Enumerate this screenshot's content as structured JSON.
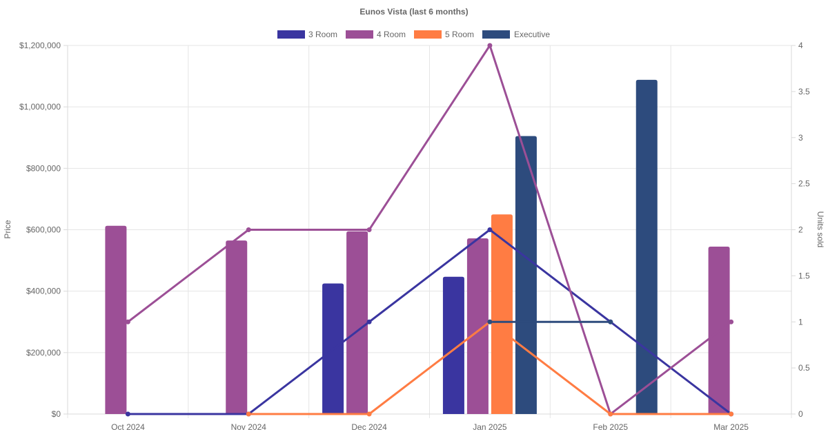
{
  "chart_data": {
    "type": "bar",
    "title": "Eunos Vista (last 6 months)",
    "categories": [
      "Oct 2024",
      "Nov 2024",
      "Dec 2024",
      "Jan 2025",
      "Feb 2025",
      "Mar 2025"
    ],
    "ylabel": "Price",
    "y2label": "Units sold",
    "ylim": [
      0,
      1200000
    ],
    "y2lim": [
      0,
      4
    ],
    "y_ticks": [
      "$0",
      "$200,000",
      "$400,000",
      "$600,000",
      "$800,000",
      "$1,000,000",
      "$1,200,000"
    ],
    "y_tick_values": [
      0,
      200000,
      400000,
      600000,
      800000,
      1000000,
      1200000
    ],
    "y2_ticks": [
      "0",
      "0.5",
      "1",
      "1.5",
      "2",
      "2.5",
      "3",
      "3.5",
      "4"
    ],
    "y2_tick_values": [
      0,
      0.5,
      1,
      1.5,
      2,
      2.5,
      3,
      3.5,
      4
    ],
    "grid": true,
    "legend_position": "top-center",
    "series": [
      {
        "name": "3 Room",
        "color": "#3a35a0",
        "price": [
          null,
          null,
          425000,
          447000,
          null,
          null
        ],
        "units": [
          0,
          0,
          1,
          2,
          1,
          0
        ]
      },
      {
        "name": "4 Room",
        "color": "#9c4f96",
        "price": [
          613000,
          565000,
          595000,
          572000,
          null,
          545000
        ],
        "units": [
          1,
          2,
          2,
          4,
          0,
          1
        ]
      },
      {
        "name": "5 Room",
        "color": "#ff7c43",
        "price": [
          null,
          null,
          null,
          650000,
          null,
          null
        ],
        "units": [
          null,
          0,
          0,
          1,
          0,
          0
        ]
      },
      {
        "name": "Executive",
        "color": "#2d4b7d",
        "price": [
          null,
          null,
          null,
          905000,
          1088000,
          null
        ],
        "units": [
          null,
          null,
          null,
          1,
          1,
          null
        ]
      }
    ]
  }
}
